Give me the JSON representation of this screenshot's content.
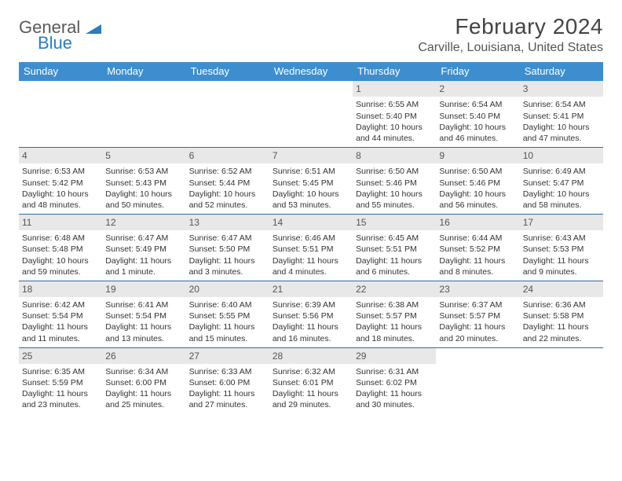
{
  "logo": {
    "line1": "General",
    "line2": "Blue"
  },
  "title": "February 2024",
  "location": "Carville, Louisiana, United States",
  "colors": {
    "header_bg": "#3d8ecf",
    "daynum_bg": "#e8e8e8",
    "week_border": "#2b6ca8",
    "logo_gray": "#5a5a5a",
    "logo_blue": "#2b7cc2"
  },
  "weekdays": [
    "Sunday",
    "Monday",
    "Tuesday",
    "Wednesday",
    "Thursday",
    "Friday",
    "Saturday"
  ],
  "weeks": [
    [
      {
        "n": "",
        "sr": "",
        "ss": "",
        "dl": ""
      },
      {
        "n": "",
        "sr": "",
        "ss": "",
        "dl": ""
      },
      {
        "n": "",
        "sr": "",
        "ss": "",
        "dl": ""
      },
      {
        "n": "",
        "sr": "",
        "ss": "",
        "dl": ""
      },
      {
        "n": "1",
        "sr": "Sunrise: 6:55 AM",
        "ss": "Sunset: 5:40 PM",
        "dl": "Daylight: 10 hours and 44 minutes."
      },
      {
        "n": "2",
        "sr": "Sunrise: 6:54 AM",
        "ss": "Sunset: 5:40 PM",
        "dl": "Daylight: 10 hours and 46 minutes."
      },
      {
        "n": "3",
        "sr": "Sunrise: 6:54 AM",
        "ss": "Sunset: 5:41 PM",
        "dl": "Daylight: 10 hours and 47 minutes."
      }
    ],
    [
      {
        "n": "4",
        "sr": "Sunrise: 6:53 AM",
        "ss": "Sunset: 5:42 PM",
        "dl": "Daylight: 10 hours and 48 minutes."
      },
      {
        "n": "5",
        "sr": "Sunrise: 6:53 AM",
        "ss": "Sunset: 5:43 PM",
        "dl": "Daylight: 10 hours and 50 minutes."
      },
      {
        "n": "6",
        "sr": "Sunrise: 6:52 AM",
        "ss": "Sunset: 5:44 PM",
        "dl": "Daylight: 10 hours and 52 minutes."
      },
      {
        "n": "7",
        "sr": "Sunrise: 6:51 AM",
        "ss": "Sunset: 5:45 PM",
        "dl": "Daylight: 10 hours and 53 minutes."
      },
      {
        "n": "8",
        "sr": "Sunrise: 6:50 AM",
        "ss": "Sunset: 5:46 PM",
        "dl": "Daylight: 10 hours and 55 minutes."
      },
      {
        "n": "9",
        "sr": "Sunrise: 6:50 AM",
        "ss": "Sunset: 5:46 PM",
        "dl": "Daylight: 10 hours and 56 minutes."
      },
      {
        "n": "10",
        "sr": "Sunrise: 6:49 AM",
        "ss": "Sunset: 5:47 PM",
        "dl": "Daylight: 10 hours and 58 minutes."
      }
    ],
    [
      {
        "n": "11",
        "sr": "Sunrise: 6:48 AM",
        "ss": "Sunset: 5:48 PM",
        "dl": "Daylight: 10 hours and 59 minutes."
      },
      {
        "n": "12",
        "sr": "Sunrise: 6:47 AM",
        "ss": "Sunset: 5:49 PM",
        "dl": "Daylight: 11 hours and 1 minute."
      },
      {
        "n": "13",
        "sr": "Sunrise: 6:47 AM",
        "ss": "Sunset: 5:50 PM",
        "dl": "Daylight: 11 hours and 3 minutes."
      },
      {
        "n": "14",
        "sr": "Sunrise: 6:46 AM",
        "ss": "Sunset: 5:51 PM",
        "dl": "Daylight: 11 hours and 4 minutes."
      },
      {
        "n": "15",
        "sr": "Sunrise: 6:45 AM",
        "ss": "Sunset: 5:51 PM",
        "dl": "Daylight: 11 hours and 6 minutes."
      },
      {
        "n": "16",
        "sr": "Sunrise: 6:44 AM",
        "ss": "Sunset: 5:52 PM",
        "dl": "Daylight: 11 hours and 8 minutes."
      },
      {
        "n": "17",
        "sr": "Sunrise: 6:43 AM",
        "ss": "Sunset: 5:53 PM",
        "dl": "Daylight: 11 hours and 9 minutes."
      }
    ],
    [
      {
        "n": "18",
        "sr": "Sunrise: 6:42 AM",
        "ss": "Sunset: 5:54 PM",
        "dl": "Daylight: 11 hours and 11 minutes."
      },
      {
        "n": "19",
        "sr": "Sunrise: 6:41 AM",
        "ss": "Sunset: 5:54 PM",
        "dl": "Daylight: 11 hours and 13 minutes."
      },
      {
        "n": "20",
        "sr": "Sunrise: 6:40 AM",
        "ss": "Sunset: 5:55 PM",
        "dl": "Daylight: 11 hours and 15 minutes."
      },
      {
        "n": "21",
        "sr": "Sunrise: 6:39 AM",
        "ss": "Sunset: 5:56 PM",
        "dl": "Daylight: 11 hours and 16 minutes."
      },
      {
        "n": "22",
        "sr": "Sunrise: 6:38 AM",
        "ss": "Sunset: 5:57 PM",
        "dl": "Daylight: 11 hours and 18 minutes."
      },
      {
        "n": "23",
        "sr": "Sunrise: 6:37 AM",
        "ss": "Sunset: 5:57 PM",
        "dl": "Daylight: 11 hours and 20 minutes."
      },
      {
        "n": "24",
        "sr": "Sunrise: 6:36 AM",
        "ss": "Sunset: 5:58 PM",
        "dl": "Daylight: 11 hours and 22 minutes."
      }
    ],
    [
      {
        "n": "25",
        "sr": "Sunrise: 6:35 AM",
        "ss": "Sunset: 5:59 PM",
        "dl": "Daylight: 11 hours and 23 minutes."
      },
      {
        "n": "26",
        "sr": "Sunrise: 6:34 AM",
        "ss": "Sunset: 6:00 PM",
        "dl": "Daylight: 11 hours and 25 minutes."
      },
      {
        "n": "27",
        "sr": "Sunrise: 6:33 AM",
        "ss": "Sunset: 6:00 PM",
        "dl": "Daylight: 11 hours and 27 minutes."
      },
      {
        "n": "28",
        "sr": "Sunrise: 6:32 AM",
        "ss": "Sunset: 6:01 PM",
        "dl": "Daylight: 11 hours and 29 minutes."
      },
      {
        "n": "29",
        "sr": "Sunrise: 6:31 AM",
        "ss": "Sunset: 6:02 PM",
        "dl": "Daylight: 11 hours and 30 minutes."
      },
      {
        "n": "",
        "sr": "",
        "ss": "",
        "dl": ""
      },
      {
        "n": "",
        "sr": "",
        "ss": "",
        "dl": ""
      }
    ]
  ]
}
